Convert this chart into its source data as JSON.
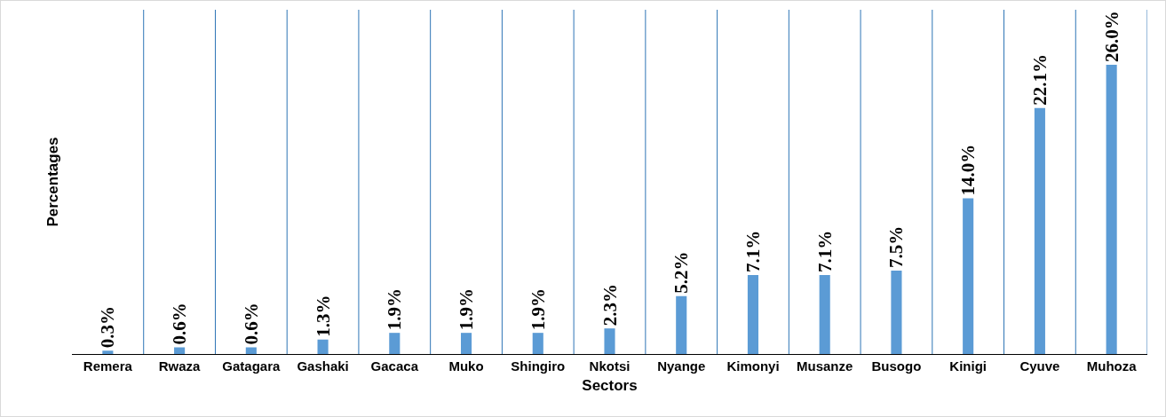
{
  "chart_data": {
    "type": "bar",
    "xlabel": "Sectors",
    "ylabel": "Percentages",
    "categories": [
      "Remera",
      "Rwaza",
      "Gatagara",
      "Gashaki",
      "Gacaca",
      "Muko",
      "Shingiro",
      "Nkotsi",
      "Nyange",
      "Kimonyi",
      "Musanze",
      "Busogo",
      "Kinigi",
      "Cyuve",
      "Muhoza"
    ],
    "values": [
      0.3,
      0.6,
      0.6,
      1.3,
      1.9,
      1.9,
      1.9,
      2.3,
      5.2,
      7.1,
      7.1,
      7.5,
      14.0,
      22.1,
      26.0
    ],
    "value_labels": [
      "0.3%",
      "0.6%",
      "0.6%",
      "1.3%",
      "1.9%",
      "1.9%",
      "1.9%",
      "2.3%",
      "5.2%",
      "7.1%",
      "7.1%",
      "7.5%",
      "14.0%",
      "22.1%",
      "26.0%"
    ],
    "color": "#5b9bd5",
    "grid": "x",
    "legend": false
  }
}
